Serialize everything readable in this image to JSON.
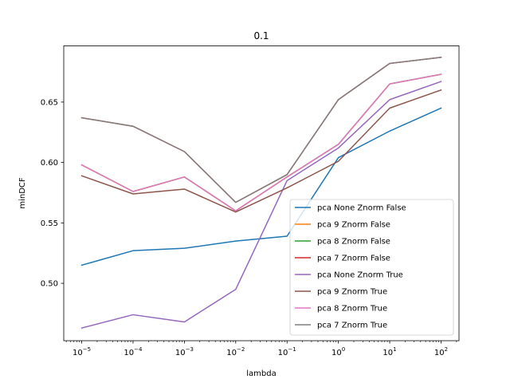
{
  "chart_data": {
    "type": "line",
    "title": "0.1",
    "xlabel": "lambda",
    "ylabel": "minDCF",
    "xscale": "log",
    "x": [
      1e-05,
      0.0001,
      0.001,
      0.01,
      0.1,
      1,
      10,
      100
    ],
    "x_tick_labels": [
      {
        "base": "10",
        "exp": "−5"
      },
      {
        "base": "10",
        "exp": "−4"
      },
      {
        "base": "10",
        "exp": "−3"
      },
      {
        "base": "10",
        "exp": "−2"
      },
      {
        "base": "10",
        "exp": "−1"
      },
      {
        "base": "10",
        "exp": "0"
      },
      {
        "base": "10",
        "exp": "1"
      },
      {
        "base": "10",
        "exp": "2"
      }
    ],
    "y_ticks": [
      0.5,
      0.55,
      0.6,
      0.65
    ],
    "y_tick_labels": [
      "0.50",
      "0.55",
      "0.60",
      "0.65"
    ],
    "ylim": [
      0.4525,
      0.6965
    ],
    "xlim_exp": [
      -5.35,
      2.35
    ],
    "legend_position": "lower right",
    "grid": false,
    "series": [
      {
        "name": "pca None Znorm False",
        "color": "#1f77b4",
        "values": [
          0.515,
          0.527,
          0.529,
          0.535,
          0.539,
          0.604,
          0.626,
          0.645
        ]
      },
      {
        "name": "pca 9 Znorm False",
        "color": "#ff7f0e",
        "values": [
          0.598,
          0.576,
          0.588,
          0.56,
          0.588,
          0.615,
          0.665,
          0.673
        ]
      },
      {
        "name": "pca 8 Znorm False",
        "color": "#2ca02c",
        "values": [
          0.598,
          0.576,
          0.588,
          0.56,
          0.588,
          0.615,
          0.665,
          0.673
        ]
      },
      {
        "name": "pca 7 Znorm False",
        "color": "#d62728",
        "values": [
          0.637,
          0.63,
          0.609,
          0.567,
          0.59,
          0.652,
          0.682,
          0.687
        ]
      },
      {
        "name": "pca None Znorm True",
        "color": "#9467bd",
        "values": [
          0.463,
          0.474,
          0.468,
          0.495,
          0.585,
          0.612,
          0.652,
          0.667
        ]
      },
      {
        "name": "pca 9 Znorm True",
        "color": "#8c564b",
        "values": [
          0.589,
          0.574,
          0.578,
          0.559,
          0.579,
          0.601,
          0.645,
          0.66
        ]
      },
      {
        "name": "pca 8 Znorm True",
        "color": "#e377c2",
        "values": [
          0.598,
          0.576,
          0.588,
          0.56,
          0.588,
          0.615,
          0.665,
          0.673
        ]
      },
      {
        "name": "pca 7 Znorm True",
        "color": "#7f7f7f",
        "values": [
          0.637,
          0.63,
          0.609,
          0.567,
          0.59,
          0.652,
          0.682,
          0.687
        ]
      }
    ]
  }
}
